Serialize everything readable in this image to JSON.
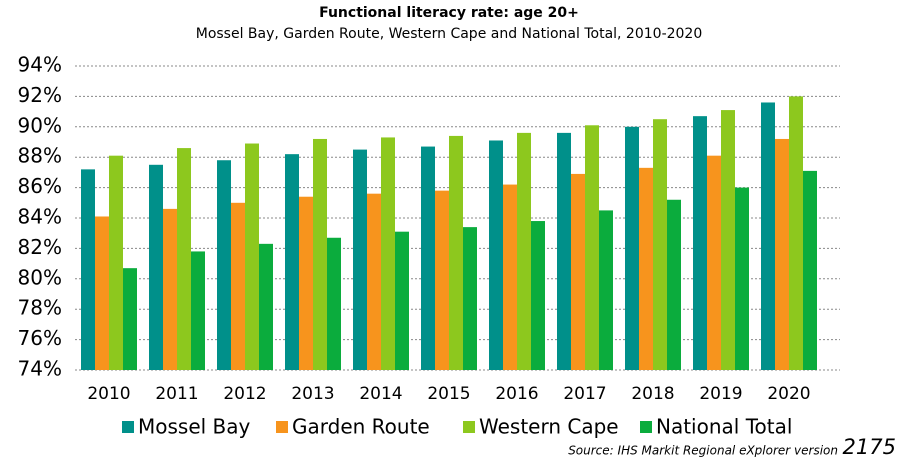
{
  "chart_data": {
    "type": "bar",
    "title": "Functional literacy rate: age 20+",
    "subtitle": "Mossel Bay, Garden Route, Western Cape and National Total, 2010-2020",
    "categories": [
      "2010",
      "2011",
      "2012",
      "2013",
      "2014",
      "2015",
      "2016",
      "2017",
      "2018",
      "2019",
      "2020"
    ],
    "series": [
      {
        "name": "Mossel Bay",
        "color": "#00908a",
        "values": [
          87.2,
          87.5,
          87.8,
          88.2,
          88.5,
          88.7,
          89.1,
          89.6,
          90.0,
          90.7,
          91.6
        ]
      },
      {
        "name": "Garden Route",
        "color": "#f7941d",
        "values": [
          84.1,
          84.6,
          85.0,
          85.4,
          85.6,
          85.8,
          86.2,
          86.9,
          87.3,
          88.1,
          89.2
        ]
      },
      {
        "name": "Western Cape",
        "color": "#8dc81e",
        "values": [
          88.1,
          88.6,
          88.9,
          89.2,
          89.3,
          89.4,
          89.6,
          90.1,
          90.5,
          91.1,
          92.0
        ]
      },
      {
        "name": "National Total",
        "color": "#0bac3d",
        "values": [
          80.7,
          81.8,
          82.3,
          82.7,
          83.1,
          83.4,
          83.8,
          84.5,
          85.2,
          86.0,
          87.1
        ]
      }
    ],
    "ylim": [
      74,
      94
    ],
    "yticks": [
      {
        "value": 74,
        "label": "74%"
      },
      {
        "value": 76,
        "label": "76%"
      },
      {
        "value": 78,
        "label": "78%"
      },
      {
        "value": 80,
        "label": "80%"
      },
      {
        "value": 82,
        "label": "82%"
      },
      {
        "value": 84,
        "label": "84%"
      },
      {
        "value": 86,
        "label": "86%"
      },
      {
        "value": 88,
        "label": "88%"
      },
      {
        "value": 90,
        "label": "90%"
      },
      {
        "value": 92,
        "label": "92%"
      },
      {
        "value": 94,
        "label": "94%"
      }
    ],
    "grid": true,
    "legend": "bottom",
    "source": "Source: IHS Markit Regional eXplorer version",
    "source_version": "2175"
  }
}
